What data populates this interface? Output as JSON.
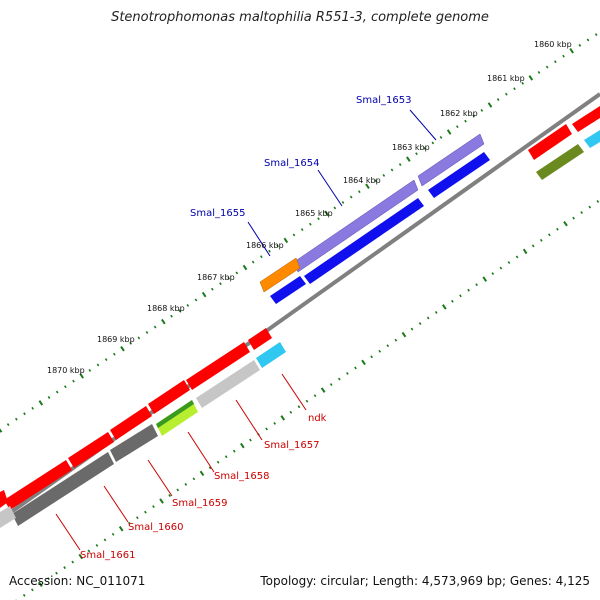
{
  "title": "Stenotrophomonas maltophilia R551-3, complete genome",
  "footer": {
    "accession": "Accession: NC_011071",
    "topology": "Topology: circular; Length: 4,573,969 bp; Genes: 4,125"
  },
  "ticks": [
    "1860 kbp",
    "1861 kbp",
    "1862 kbp",
    "1863 kbp",
    "1864 kbp",
    "1865 kbp",
    "1866 kbp",
    "1867 kbp",
    "1868 kbp",
    "1869 kbp",
    "1870 kbp"
  ],
  "colors": {
    "backbone": "#808080",
    "tick": "#1a7a1a",
    "label_forward": "#0000aa",
    "label_reverse": "#cc0000",
    "red": "#ff0000",
    "purple": "#8a7ae0",
    "blue": "#1010ee",
    "orange": "#ff8a00",
    "gray_dark": "#6a6a6a",
    "gray_light": "#c6c6c6",
    "lime": "#b8ee30",
    "green": "#3a9a20",
    "cyan": "#30c8f0",
    "olive": "#6a8a20"
  },
  "gene_labels_forward": [
    "Smal_1653",
    "Smal_1654",
    "Smal_1655"
  ],
  "gene_labels_reverse": [
    "ndk",
    "Smal_1657",
    "Smal_1658",
    "Smal_1659",
    "Smal_1660",
    "Smal_1661"
  ]
}
